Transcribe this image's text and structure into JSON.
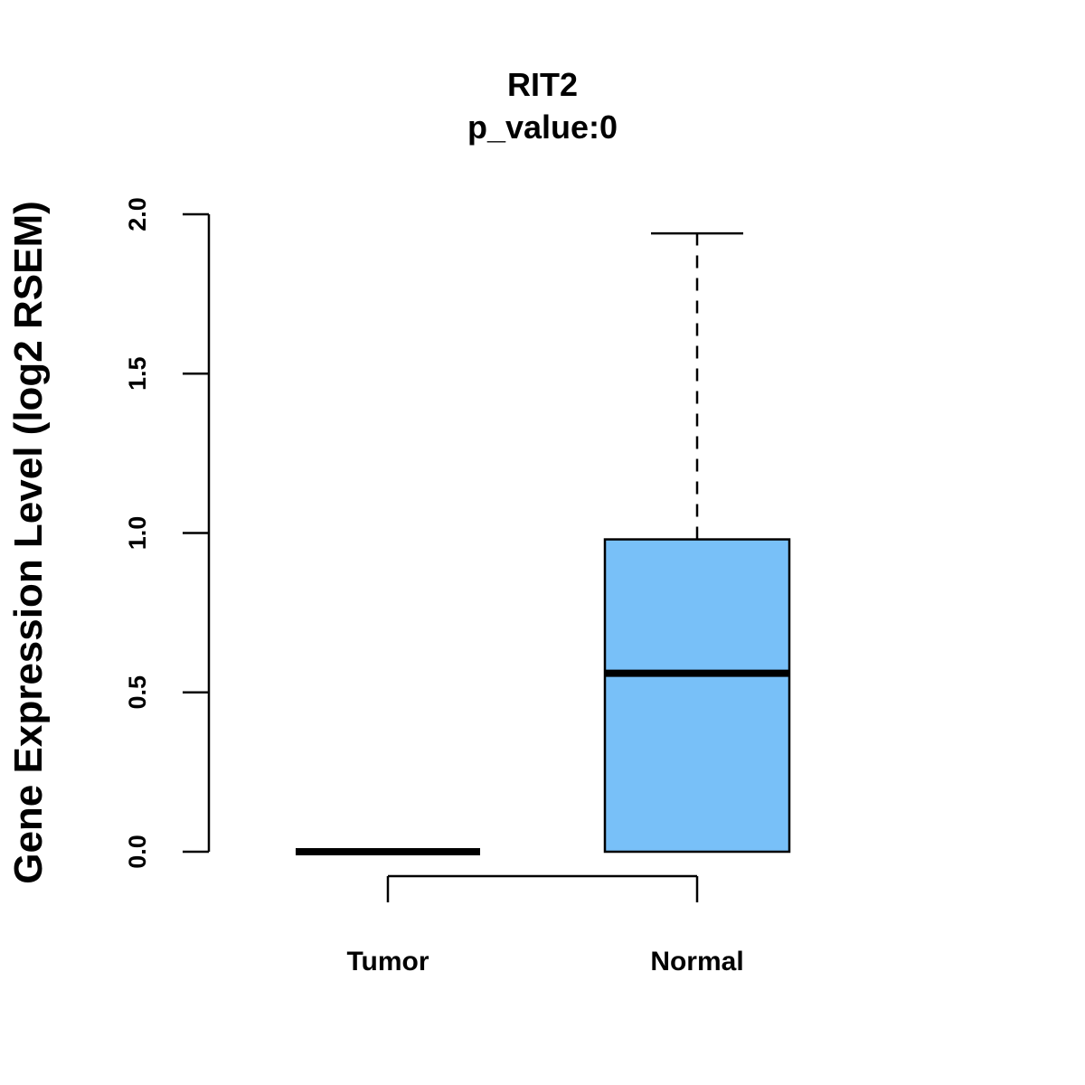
{
  "chart_data": {
    "type": "box",
    "title": "RIT2",
    "subtitle": "p_value:0",
    "xlabel": "",
    "ylabel": "Gene Expression Level (log2 RSEM)",
    "ylim": [
      0,
      2.0
    ],
    "yticks": [
      {
        "value": 0.0,
        "label": "0.0"
      },
      {
        "value": 0.5,
        "label": "0.5"
      },
      {
        "value": 1.0,
        "label": "1.0"
      },
      {
        "value": 1.5,
        "label": "1.5"
      },
      {
        "value": 2.0,
        "label": "2.0"
      }
    ],
    "categories": [
      "Tumor",
      "Normal"
    ],
    "boxes": [
      {
        "name": "Tumor",
        "min": 0.0,
        "q1": 0.0,
        "median": 0.0,
        "q3": 0.0,
        "max": 0.0,
        "color": "#ffffff"
      },
      {
        "name": "Normal",
        "min": 0.0,
        "q1": 0.0,
        "median": 0.56,
        "q3": 0.98,
        "max": 1.94,
        "color": "#78c0f8"
      }
    ],
    "grid": false,
    "legend": "none"
  }
}
